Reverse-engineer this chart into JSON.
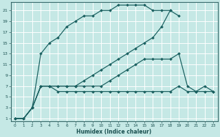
{
  "xlabel": "Humidex (Indice chaleur)",
  "bg_color": "#c5e8e5",
  "grid_color": "#ffffff",
  "line_color": "#1a6060",
  "xlim": [
    -0.5,
    23.5
  ],
  "ylim": [
    0.5,
    22.5
  ],
  "xticks": [
    0,
    1,
    2,
    3,
    4,
    5,
    6,
    7,
    8,
    9,
    10,
    11,
    12,
    13,
    14,
    15,
    16,
    17,
    18,
    19,
    20,
    21,
    22,
    23
  ],
  "yticks": [
    1,
    3,
    5,
    7,
    9,
    11,
    13,
    15,
    17,
    19,
    21
  ],
  "series": [
    {
      "x": [
        0,
        1,
        2,
        3,
        4,
        5,
        6,
        7,
        8,
        9,
        10,
        11,
        12,
        13,
        14,
        15,
        16,
        17,
        18,
        19
      ],
      "y": [
        1,
        1,
        3,
        13,
        15,
        16,
        18,
        19,
        20,
        20,
        21,
        21,
        22,
        22,
        22,
        22,
        21,
        21,
        21,
        20
      ]
    },
    {
      "x": [
        0,
        1,
        2,
        3,
        4,
        5,
        6,
        7,
        8,
        9,
        10,
        11,
        12,
        13,
        14,
        15,
        16,
        17,
        18
      ],
      "y": [
        1,
        1,
        3,
        7,
        7,
        7,
        7,
        7,
        8,
        9,
        10,
        11,
        12,
        13,
        14,
        15,
        16,
        18,
        21
      ]
    },
    {
      "x": [
        0,
        1,
        2,
        3,
        4,
        5,
        6,
        7,
        8,
        9,
        10,
        11,
        12,
        13,
        14,
        15,
        16,
        17,
        18,
        19,
        20,
        21,
        22,
        23
      ],
      "y": [
        1,
        1,
        3,
        7,
        7,
        7,
        7,
        7,
        7,
        7,
        7,
        8,
        9,
        10,
        11,
        12,
        12,
        12,
        12,
        13,
        7,
        6,
        7,
        6
      ]
    },
    {
      "x": [
        0,
        1,
        2,
        3,
        4,
        5,
        6,
        7,
        8,
        9,
        10,
        11,
        12,
        13,
        14,
        15,
        16,
        17,
        18,
        19,
        20,
        21,
        22,
        23
      ],
      "y": [
        1,
        1,
        3,
        7,
        7,
        6,
        6,
        6,
        6,
        6,
        6,
        6,
        6,
        6,
        6,
        6,
        6,
        6,
        6,
        7,
        6,
        6,
        6,
        6
      ]
    }
  ]
}
